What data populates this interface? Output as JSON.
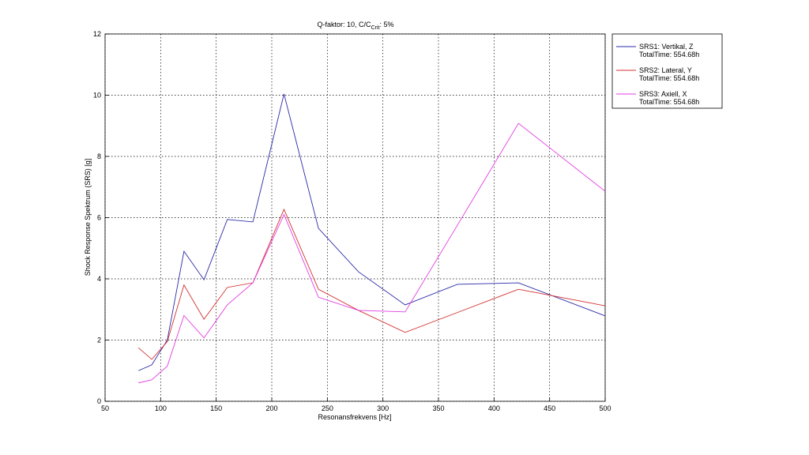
{
  "chart_data": {
    "type": "line",
    "title": "Q-faktor: 10, C/C",
    "title_subscript": "Crit",
    "title_suffix": ": 5%",
    "x_label": "Resonansfrekvens [Hz]",
    "y_label": "Shock Response Spektrum (SRS) [g]",
    "x": [
      80,
      92,
      106,
      121,
      139,
      160,
      183,
      211,
      242,
      278,
      320,
      367,
      422,
      500
    ],
    "series": [
      {
        "name": "SRS1: Vertikal, Z",
        "note": "TotalTime: 554.68h",
        "color": "#2a2aa8",
        "values": [
          1.0,
          1.19,
          2.0,
          4.9,
          3.97,
          5.94,
          5.86,
          10.04,
          5.65,
          4.23,
          3.15,
          3.82,
          3.87,
          2.79
        ]
      },
      {
        "name": "SRS2: Lateral, Y",
        "note": "TotalTime: 554.68h",
        "color": "#d43030",
        "values": [
          1.75,
          1.37,
          1.95,
          3.8,
          2.68,
          3.72,
          3.87,
          6.27,
          3.66,
          2.97,
          2.25,
          2.9,
          3.66,
          3.12
        ]
      },
      {
        "name": "SRS3: Axiell, X",
        "note": "TotalTime: 554.68h",
        "color": "#e23ee2",
        "values": [
          0.6,
          0.7,
          1.15,
          2.8,
          2.07,
          3.15,
          3.87,
          6.1,
          3.4,
          2.97,
          2.92,
          5.75,
          9.08,
          6.86
        ]
      }
    ],
    "xlim": [
      50,
      500
    ],
    "xticks": [
      50,
      100,
      150,
      200,
      250,
      300,
      350,
      400,
      450,
      500
    ],
    "ylim": [
      0,
      12
    ],
    "yticks": [
      0,
      2,
      4,
      6,
      8,
      10,
      12
    ],
    "grid": true,
    "legend": "outside-right"
  }
}
